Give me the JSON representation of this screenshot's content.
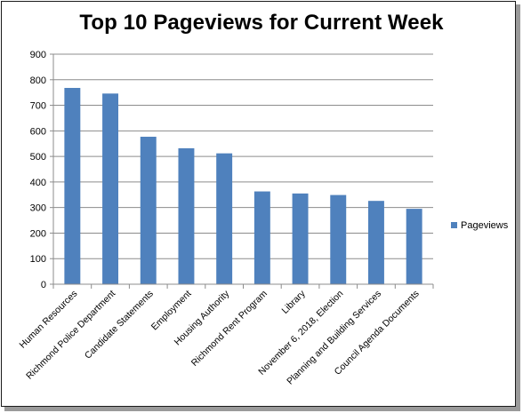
{
  "chart_data": {
    "type": "bar",
    "title": "Top 10 Pageviews for Current Week",
    "xlabel": "",
    "ylabel": "",
    "ylim": [
      0,
      900
    ],
    "yticks": [
      0,
      100,
      200,
      300,
      400,
      500,
      600,
      700,
      800,
      900
    ],
    "grid": true,
    "legend_position": "right",
    "categories": [
      "Human Resources",
      "Richmond Police Department",
      "Candidate Statements",
      "Employment",
      "Housing Authority",
      "Richmond Rent Program",
      "Library",
      "November 6, 2018, Election",
      "Planning and Building Services",
      "Council Agenda Documents"
    ],
    "series": [
      {
        "name": "Pageviews",
        "color": "#4f81bd",
        "values": [
          768,
          746,
          577,
          532,
          512,
          363,
          355,
          349,
          326,
          295
        ]
      }
    ]
  }
}
